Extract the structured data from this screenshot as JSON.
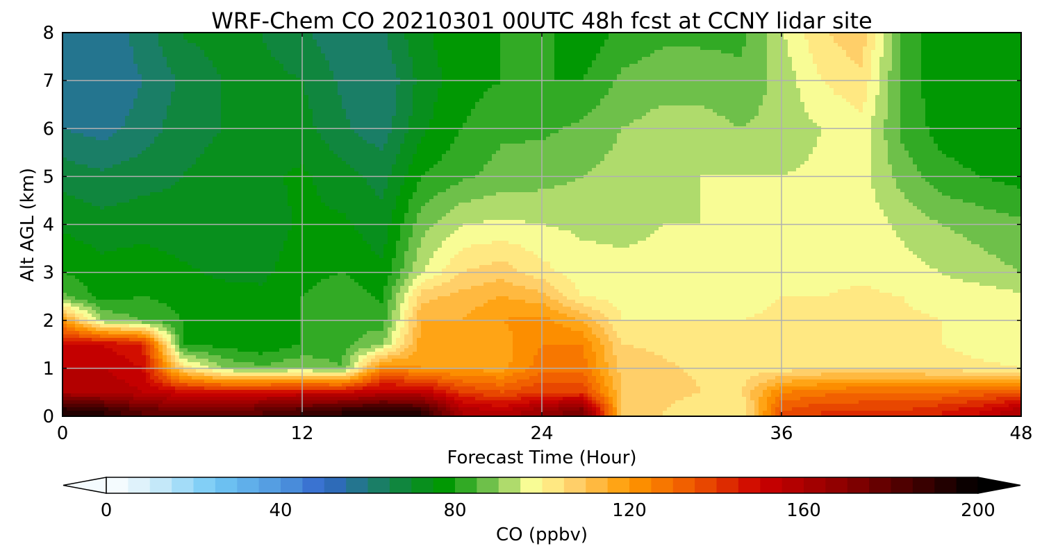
{
  "chart_data": {
    "type": "heatmap",
    "title": "WRF-Chem CO  20210301 00UTC 48h fcst at CCNY lidar site",
    "xlabel": "Forecast Time (Hour)",
    "ylabel": "Alt AGL (km)",
    "xlim": [
      0,
      48
    ],
    "ylim": [
      0,
      8
    ],
    "x_ticks": [
      "0",
      "12",
      "24",
      "36",
      "48"
    ],
    "y_ticks": [
      "0",
      "1",
      "2",
      "3",
      "4",
      "5",
      "6",
      "7",
      "8"
    ],
    "grid": true,
    "x": [
      0,
      2,
      4,
      6,
      8,
      10,
      12,
      14,
      16,
      18,
      20,
      22,
      24,
      26,
      28,
      30,
      32,
      34,
      36,
      38,
      40,
      42,
      44,
      46,
      48
    ],
    "y": [
      0.1,
      0.5,
      1.0,
      1.5,
      2.0,
      2.5,
      3.0,
      4.0,
      5.0,
      6.0,
      7.0,
      7.9
    ],
    "z": [
      [
        195,
        190,
        180,
        175,
        175,
        180,
        185,
        190,
        195,
        190,
        160,
        155,
        165,
        175,
        110,
        105,
        100,
        100,
        135,
        140,
        140,
        140,
        145,
        150,
        160
      ],
      [
        160,
        160,
        155,
        150,
        148,
        150,
        150,
        150,
        155,
        155,
        140,
        135,
        140,
        140,
        110,
        108,
        105,
        105,
        125,
        128,
        130,
        130,
        130,
        132,
        135
      ],
      [
        155,
        155,
        150,
        105,
        90,
        86,
        90,
        85,
        125,
        120,
        118,
        118,
        128,
        128,
        108,
        106,
        104,
        102,
        102,
        104,
        105,
        104,
        103,
        101,
        100
      ],
      [
        150,
        150,
        145,
        80,
        78,
        76,
        80,
        83,
        90,
        118,
        115,
        118,
        125,
        125,
        105,
        104,
        102,
        100,
        100,
        100,
        100,
        100,
        100,
        98,
        97
      ],
      [
        120,
        90,
        85,
        80,
        80,
        78,
        80,
        83,
        82,
        115,
        115,
        120,
        122,
        115,
        100,
        100,
        100,
        100,
        101,
        101,
        102,
        101,
        100,
        100,
        100
      ],
      [
        86,
        78,
        80,
        78,
        77,
        76,
        80,
        84,
        79,
        108,
        112,
        115,
        112,
        100,
        98,
        98,
        98,
        98,
        100,
        100,
        101,
        100,
        98,
        98,
        96
      ],
      [
        80,
        77,
        78,
        76,
        74,
        74,
        78,
        80,
        76,
        95,
        105,
        108,
        102,
        97,
        96,
        96,
        96,
        96,
        98,
        98,
        99,
        97,
        95,
        92,
        90
      ],
      [
        74,
        72,
        73,
        72,
        70,
        72,
        76,
        76,
        72,
        88,
        95,
        96,
        95,
        94,
        94,
        95,
        95,
        96,
        96,
        97,
        98,
        94,
        90,
        88,
        86
      ],
      [
        68,
        66,
        68,
        70,
        72,
        74,
        76,
        72,
        68,
        80,
        84,
        87,
        88,
        90,
        92,
        94,
        95,
        95,
        95,
        96,
        97,
        88,
        82,
        80,
        78
      ],
      [
        60,
        58,
        62,
        68,
        70,
        72,
        72,
        66,
        62,
        74,
        80,
        84,
        84,
        86,
        90,
        92,
        92,
        90,
        92,
        95,
        98,
        84,
        78,
        76,
        76
      ],
      [
        57,
        56,
        60,
        66,
        70,
        72,
        70,
        64,
        60,
        72,
        78,
        80,
        80,
        80,
        86,
        88,
        88,
        86,
        92,
        100,
        104,
        84,
        76,
        76,
        76
      ],
      [
        56,
        56,
        62,
        70,
        72,
        70,
        66,
        62,
        64,
        74,
        78,
        80,
        82,
        76,
        82,
        84,
        84,
        84,
        94,
        104,
        108,
        84,
        76,
        76,
        76
      ]
    ],
    "colorbar": {
      "label": "CO  (ppbv)",
      "ticks": [
        "0",
        "40",
        "80",
        "120",
        "160",
        "200"
      ],
      "min": 0,
      "max": 200,
      "step": 5,
      "extend": "both",
      "orientation": "horizontal, below plot",
      "stops": [
        {
          "v": 0,
          "c": "#ffffff"
        },
        {
          "v": 10,
          "c": "#d4eefa"
        },
        {
          "v": 25,
          "c": "#72c9f5"
        },
        {
          "v": 42,
          "c": "#4a8fdb"
        },
        {
          "v": 50,
          "c": "#3366cc"
        },
        {
          "v": 60,
          "c": "#1f7a7a"
        },
        {
          "v": 70,
          "c": "#0b8a2a"
        },
        {
          "v": 78,
          "c": "#009900"
        },
        {
          "v": 85,
          "c": "#4db33a"
        },
        {
          "v": 92,
          "c": "#a8d868"
        },
        {
          "v": 98,
          "c": "#ffff99"
        },
        {
          "v": 108,
          "c": "#ffcc66"
        },
        {
          "v": 120,
          "c": "#ff9900"
        },
        {
          "v": 135,
          "c": "#ee5500"
        },
        {
          "v": 150,
          "c": "#cc0000"
        },
        {
          "v": 170,
          "c": "#880000"
        },
        {
          "v": 185,
          "c": "#440000"
        },
        {
          "v": 200,
          "c": "#000000"
        }
      ]
    }
  }
}
